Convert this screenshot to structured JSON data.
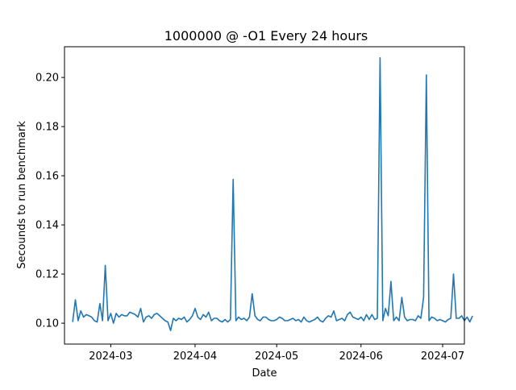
{
  "chart_data": {
    "type": "line",
    "title": "1000000 @ -O1 Every 24 hours",
    "xlabel": "Date",
    "ylabel": "Secounds to run benchmark",
    "x_start": "2024-02-16",
    "xlim": [
      "2024-02-13",
      "2024-07-09"
    ],
    "ylim": [
      0.0915,
      0.2125
    ],
    "x_ticks": [
      {
        "date": "2024-03-01",
        "label": "2024-03"
      },
      {
        "date": "2024-04-01",
        "label": "2024-04"
      },
      {
        "date": "2024-05-01",
        "label": "2024-05"
      },
      {
        "date": "2024-06-01",
        "label": "2024-06"
      },
      {
        "date": "2024-07-01",
        "label": "2024-07"
      }
    ],
    "y_ticks": [
      {
        "value": 0.1,
        "label": "0.10"
      },
      {
        "value": 0.12,
        "label": "0.12"
      },
      {
        "value": 0.14,
        "label": "0.14"
      },
      {
        "value": 0.16,
        "label": "0.16"
      },
      {
        "value": 0.18,
        "label": "0.18"
      },
      {
        "value": 0.2,
        "label": "0.20"
      }
    ],
    "grid": false,
    "line_color": "#1f77b4",
    "series": [
      {
        "values": [
          [
            0.1005,
            0.1095,
            0.101,
            0.105,
            0.1025,
            0.1035,
            0.103,
            0.1025,
            0.101,
            0.1005,
            0.108,
            0.101,
            0.1235,
            0.101,
            0.104,
            0.1,
            0.104,
            0.1025,
            0.1035,
            0.103,
            0.103,
            0.1045,
            0.104,
            0.1035,
            0.1025,
            0.106,
            0.1005,
            0.1025,
            0.103,
            0.102
          ],
          [
            0.1035,
            0.104,
            0.103,
            0.102,
            0.101,
            0.1005,
            0.097,
            0.102,
            0.101,
            0.102,
            0.1015,
            0.1025,
            0.1005,
            0.1015,
            0.103,
            0.106,
            0.1025,
            0.1015,
            0.1035,
            0.1025,
            0.1045,
            0.101,
            0.102,
            0.102,
            0.101,
            0.1005,
            0.1015,
            0.1005,
            0.1015,
            0.1585
          ],
          [
            0.101,
            0.1025,
            0.1015,
            0.102,
            0.101,
            0.1025,
            0.112,
            0.103,
            0.1015,
            0.101,
            0.1025,
            0.1025,
            0.1015,
            0.101,
            0.101,
            0.1015,
            0.1025,
            0.102,
            0.101,
            0.101,
            0.1015,
            0.102,
            0.101,
            0.1015,
            0.1005,
            0.1025,
            0.101,
            0.1005,
            0.101,
            0.1015
          ],
          [
            0.1025,
            0.101,
            0.1005,
            0.102,
            0.103,
            0.1025,
            0.105,
            0.101,
            0.1015,
            0.102,
            0.101,
            0.1035,
            0.1045,
            0.1025,
            0.102,
            0.1015,
            0.1025,
            0.101,
            0.1035,
            0.1015,
            0.1035,
            0.1015,
            0.102,
            0.208,
            0.101,
            0.106,
            0.103,
            0.117,
            0.101,
            0.1025
          ],
          [
            0.101,
            0.1105,
            0.1025,
            0.101,
            0.1015,
            0.1015,
            0.101,
            0.103,
            0.102,
            0.1105,
            0.201,
            0.101,
            0.1025,
            0.102,
            0.101,
            0.1015,
            0.101,
            0.1005,
            0.1015,
            0.102,
            0.12,
            0.102,
            0.102,
            0.103,
            0.101,
            0.1025,
            0.1005,
            0.103
          ]
        ]
      }
    ]
  }
}
